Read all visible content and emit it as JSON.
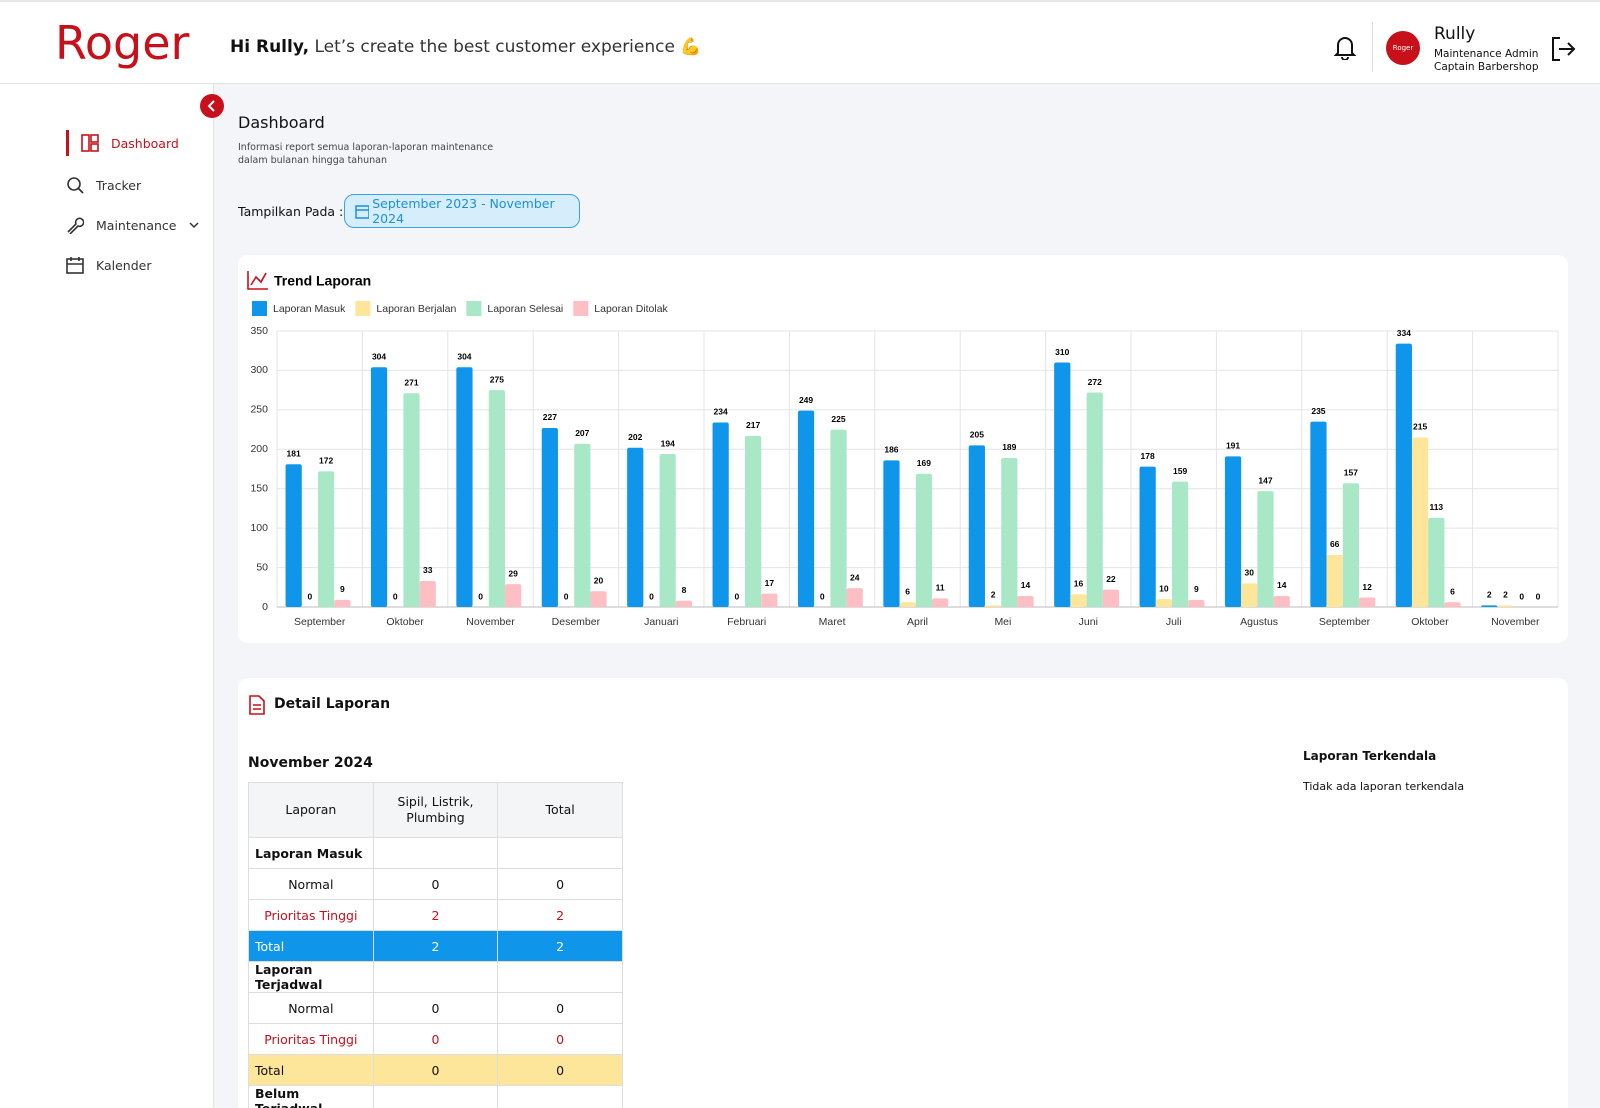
{
  "header": {
    "logo": "Roger",
    "greeting": "Hi Rully,",
    "tagline": "Let’s create the best customer experience 💪",
    "user": {
      "avatar": "Roger",
      "name": "Rully",
      "role": "Maintenance Admin",
      "company": "Captain Barbershop"
    }
  },
  "sidebar": {
    "items": [
      "Dashboard",
      "Tracker",
      "Maintenance",
      "Kalender"
    ]
  },
  "page": {
    "title": "Dashboard",
    "description_lines": [
      "Informasi report semua laporan-laporan maintenance",
      "dalam bulanan hingga tahunan"
    ],
    "filter_label": "Tampilkan Pada :",
    "date_range": "September 2023 - November 2024"
  },
  "chart_data": {
    "type": "bar",
    "title": "Trend Laporan",
    "categories": [
      "September",
      "Oktober",
      "November",
      "Desember",
      "Januari",
      "Februari",
      "Maret",
      "April",
      "Mei",
      "Juni",
      "Juli",
      "Agustus",
      "September",
      "Oktober",
      "November"
    ],
    "series": [
      {
        "name": "Laporan Masuk",
        "color": "#0f96ea",
        "values": [
          181,
          304,
          304,
          227,
          202,
          234,
          249,
          186,
          205,
          310,
          178,
          191,
          235,
          334,
          2
        ]
      },
      {
        "name": "Laporan Berjalan",
        "color": "#fde59a",
        "values": [
          0,
          0,
          0,
          0,
          0,
          0,
          0,
          6,
          2,
          16,
          10,
          30,
          66,
          215,
          2
        ]
      },
      {
        "name": "Laporan Selesai",
        "color": "#a8e8c6",
        "values": [
          172,
          271,
          275,
          207,
          194,
          217,
          225,
          169,
          189,
          272,
          159,
          147,
          157,
          113,
          0
        ]
      },
      {
        "name": "Laporan Ditolak",
        "color": "#fdbfc4",
        "values": [
          9,
          33,
          29,
          20,
          8,
          17,
          24,
          11,
          14,
          22,
          9,
          14,
          12,
          6,
          0
        ]
      }
    ],
    "ylim": [
      0,
      350
    ],
    "yticks": [
      0,
      50,
      100,
      150,
      200,
      250,
      300,
      350
    ],
    "grid": true,
    "legend": "top"
  },
  "detail": {
    "title": "Detail Laporan",
    "month": "November 2024",
    "table": {
      "columns": [
        "Laporan",
        "Sipil, Listrik, Plumbing",
        "Total"
      ],
      "sections": [
        {
          "title": "Laporan Masuk",
          "rows": [
            [
              "Normal",
              0,
              0
            ],
            [
              "Prioritas Tinggi",
              2,
              2
            ]
          ],
          "total": [
            "Total",
            2,
            2
          ]
        },
        {
          "title": "Laporan Terjadwal",
          "rows": [
            [
              "Normal",
              0,
              0
            ],
            [
              "Prioritas Tinggi",
              0,
              0
            ]
          ],
          "total": [
            "Total",
            0,
            0
          ]
        },
        {
          "title": "Belum Terjadwal"
        }
      ]
    },
    "side_title": "Laporan Terkendala",
    "side_text": "Tidak ada laporan terkendala"
  }
}
